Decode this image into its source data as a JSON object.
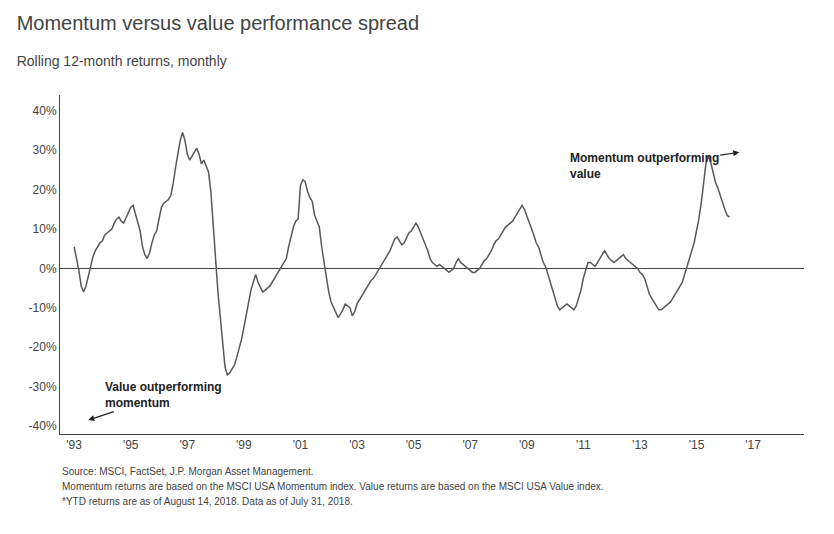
{
  "chart_data": {
    "type": "line",
    "title": "Momentum versus value performance spread",
    "subtitle": "Rolling 12-month returns, monthly",
    "annotations": [
      "Momentum outperforming\nvalue",
      "Value outperforming\nmomentum"
    ],
    "source": [
      "Source: MSCI, FactSet, J.P. Morgan Asset Management.",
      "Momentum returns are based on the MSCI USA Momentum index. Value returns are based on the MSCI USA Value index.",
      "*YTD returns are as of August 14, 2018. Data as of July 31, 2018."
    ],
    "color": "#595959",
    "grid": false,
    "xlim": [
      1992.5,
      2018.8
    ],
    "xticks": [
      {
        "value": 1993,
        "label": "'93"
      },
      {
        "value": 1995,
        "label": "'95"
      },
      {
        "value": 1997,
        "label": "'97"
      },
      {
        "value": 1999,
        "label": "'99"
      },
      {
        "value": 2001,
        "label": "'01"
      },
      {
        "value": 2003,
        "label": "'03"
      },
      {
        "value": 2005,
        "label": "'05"
      },
      {
        "value": 2007,
        "label": "'07"
      },
      {
        "value": 2009,
        "label": "'09"
      },
      {
        "value": 2011,
        "label": "'11"
      },
      {
        "value": 2013,
        "label": "'13"
      },
      {
        "value": 2015,
        "label": "'15"
      },
      {
        "value": 2017,
        "label": "'17"
      }
    ],
    "ylim": [
      -0.42,
      0.44
    ],
    "yticks": [
      {
        "value": -0.4,
        "label": "-40%"
      },
      {
        "value": -0.3,
        "label": "-30%"
      },
      {
        "value": -0.2,
        "label": "-20%"
      },
      {
        "value": -0.1,
        "label": "-10%"
      },
      {
        "value": 0.0,
        "label": "0%"
      },
      {
        "value": 0.1,
        "label": "10%"
      },
      {
        "value": 0.2,
        "label": "20%"
      },
      {
        "value": 0.3,
        "label": "30%"
      },
      {
        "value": 0.4,
        "label": "40%"
      }
    ],
    "x": [
      1993,
      1993.08333,
      1993.16666,
      1993.24999,
      1993.33332,
      1993.41665,
      1993.49998,
      1993.58331,
      1993.66664,
      1993.74997,
      1993.8333,
      1993.91663,
      1993.99996,
      1994.08329,
      1994.16662,
      1994.24995,
      1994.33328,
      1994.41661,
      1994.49994,
      1994.58327,
      1994.6666,
      1994.74993,
      1994.83326,
      1994.91659,
      1994.99992,
      1995.08325,
      1995.16658,
      1995.24991,
      1995.33324,
      1995.41657,
      1995.4999,
      1995.58323,
      1995.66656,
      1995.74989,
      1995.83322,
      1995.91655,
      1995.99988,
      1996.08321,
      1996.16654,
      1996.24987,
      1996.3332,
      1996.41653,
      1996.49986,
      1996.58319,
      1996.66652,
      1996.74985,
      1996.83318,
      1996.91651,
      1996.99984,
      1997.08317,
      1997.1665,
      1997.24983,
      1997.33316,
      1997.41649,
      1997.49982,
      1997.58315,
      1997.66648,
      1997.74981,
      1997.83314,
      1997.91647,
      1997.9998,
      1998.08313,
      1998.16646,
      1998.24979,
      1998.33312,
      1998.41645,
      1998.49978,
      1998.58311,
      1998.66644,
      1998.74977,
      1998.8331,
      1998.91643,
      1998.99976,
      1999.08309,
      1999.16642,
      1999.24975,
      1999.33308,
      1999.41641,
      1999.49974,
      1999.58307,
      1999.6664,
      1999.74973,
      1999.83306,
      1999.91639,
      1999.99972,
      2000.08305,
      2000.16638,
      2000.24971,
      2000.33304,
      2000.41637,
      2000.4997,
      2000.58303,
      2000.66636,
      2000.74969,
      2000.83302,
      2000.91635,
      2000.99968,
      2001.08301,
      2001.16634,
      2001.24967,
      2001.333,
      2001.41633,
      2001.49966,
      2001.58299,
      2001.66632,
      2001.74965,
      2001.83298,
      2001.91631,
      2001.99964,
      2002.08297,
      2002.1663,
      2002.24963,
      2002.33296,
      2002.41629,
      2002.49962,
      2002.58295,
      2002.66628,
      2002.74961,
      2002.83294,
      2002.91627,
      2002.9996,
      2003.08293,
      2003.16626,
      2003.24959,
      2003.33292,
      2003.41625,
      2003.49958,
      2003.58291,
      2003.66624,
      2003.74957,
      2003.8329,
      2003.91623,
      2003.99956,
      2004.08289,
      2004.16622,
      2004.24955,
      2004.33288,
      2004.41621,
      2004.49954,
      2004.58287,
      2004.6662,
      2004.74953,
      2004.83286,
      2004.91619,
      2004.99952,
      2005.08285,
      2005.16618,
      2005.24951,
      2005.33284,
      2005.41617,
      2005.4995,
      2005.58283,
      2005.66616,
      2005.74949,
      2005.83282,
      2005.91615,
      2005.99948,
      2006.08281,
      2006.16614,
      2006.24947,
      2006.3328,
      2006.41613,
      2006.49946,
      2006.58279,
      2006.66612,
      2006.74945,
      2006.83278,
      2006.91611,
      2006.99944,
      2007.08277,
      2007.1661,
      2007.24943,
      2007.33276,
      2007.41609,
      2007.49942,
      2007.58275,
      2007.66608,
      2007.74941,
      2007.83274,
      2007.91607,
      2007.9994,
      2008.08273,
      2008.16606,
      2008.24939,
      2008.33272,
      2008.41605,
      2008.49938,
      2008.58271,
      2008.66604,
      2008.74937,
      2008.8327,
      2008.91603,
      2008.99936,
      2009.08269,
      2009.16602,
      2009.24935,
      2009.33268,
      2009.41601,
      2009.49934,
      2009.58267,
      2009.666,
      2009.74933,
      2009.83266,
      2009.91599,
      2009.99932,
      2010.08265,
      2010.16598,
      2010.24931,
      2010.33264,
      2010.41597,
      2010.4993,
      2010.58263,
      2010.66596,
      2010.74929,
      2010.83262,
      2010.91595,
      2010.99928,
      2011.08261,
      2011.16594,
      2011.24927,
      2011.3326,
      2011.41593,
      2011.49926,
      2011.58259,
      2011.66592,
      2011.74925,
      2011.83258,
      2011.91591,
      2011.99924,
      2012.08257,
      2012.1659,
      2012.24923,
      2012.33256,
      2012.41589,
      2012.49922,
      2012.58255,
      2012.66588,
      2012.74921,
      2012.83254,
      2012.91587,
      2012.9992,
      2013.08253,
      2013.16586,
      2013.24919,
      2013.33252,
      2013.41585,
      2013.49918,
      2013.58251,
      2013.66584,
      2013.74917,
      2013.8325,
      2013.91583,
      2013.99916,
      2014.08249,
      2014.16582,
      2014.24915,
      2014.33248,
      2014.41581,
      2014.49914,
      2014.58247,
      2014.6658,
      2014.74913,
      2014.83246,
      2014.91579,
      2014.99912,
      2015.08245,
      2015.16578,
      2015.24911,
      2015.33244,
      2015.41577,
      2015.4991,
      2015.58243,
      2015.66576,
      2015.74909,
      2015.83242,
      2015.91575,
      2015.99908,
      2016.08241,
      2016.16574
    ],
    "values": [
      0.055,
      0.025,
      -0.005,
      -0.045,
      -0.06,
      -0.045,
      -0.02,
      0.01,
      0.03,
      0.045,
      0.055,
      0.065,
      0.07,
      0.085,
      0.09,
      0.095,
      0.1,
      0.115,
      0.125,
      0.13,
      0.12,
      0.115,
      0.13,
      0.145,
      0.155,
      0.16,
      0.14,
      0.115,
      0.095,
      0.055,
      0.035,
      0.025,
      0.04,
      0.065,
      0.085,
      0.095,
      0.125,
      0.155,
      0.165,
      0.17,
      0.175,
      0.185,
      0.215,
      0.255,
      0.29,
      0.325,
      0.345,
      0.325,
      0.29,
      0.275,
      0.285,
      0.295,
      0.305,
      0.29,
      0.265,
      0.275,
      0.26,
      0.245,
      0.195,
      0.095,
      0.025,
      -0.06,
      -0.12,
      -0.19,
      -0.25,
      -0.27,
      -0.265,
      -0.255,
      -0.245,
      -0.225,
      -0.205,
      -0.18,
      -0.15,
      -0.115,
      -0.085,
      -0.055,
      -0.035,
      -0.015,
      -0.035,
      -0.05,
      -0.06,
      -0.055,
      -0.05,
      -0.045,
      -0.035,
      -0.025,
      -0.015,
      -0.005,
      0.005,
      0.015,
      0.025,
      0.055,
      0.08,
      0.105,
      0.12,
      0.125,
      0.21,
      0.225,
      0.22,
      0.195,
      0.18,
      0.17,
      0.135,
      0.12,
      0.105,
      0.055,
      0.015,
      -0.025,
      -0.06,
      -0.085,
      -0.1,
      -0.115,
      -0.125,
      -0.115,
      -0.105,
      -0.09,
      -0.095,
      -0.1,
      -0.12,
      -0.11,
      -0.09,
      -0.08,
      -0.07,
      -0.06,
      -0.05,
      -0.04,
      -0.03,
      -0.025,
      -0.015,
      -0.005,
      0.005,
      0.015,
      0.025,
      0.035,
      0.045,
      0.06,
      0.075,
      0.08,
      0.07,
      0.06,
      0.065,
      0.08,
      0.09,
      0.095,
      0.105,
      0.115,
      0.105,
      0.09,
      0.075,
      0.065,
      0.045,
      0.025,
      0.015,
      0.01,
      0.005,
      0.01,
      0.005,
      0.0,
      -0.005,
      -0.01,
      -0.005,
      0.0,
      0.015,
      0.025,
      0.015,
      0.01,
      0.005,
      0.0,
      -0.005,
      -0.01,
      -0.01,
      -0.005,
      0.0,
      0.01,
      0.02,
      0.025,
      0.035,
      0.045,
      0.06,
      0.07,
      0.075,
      0.085,
      0.095,
      0.105,
      0.11,
      0.115,
      0.12,
      0.13,
      0.14,
      0.15,
      0.16,
      0.15,
      0.135,
      0.12,
      0.105,
      0.085,
      0.065,
      0.055,
      0.035,
      0.015,
      0.005,
      -0.015,
      -0.035,
      -0.055,
      -0.075,
      -0.095,
      -0.105,
      -0.1,
      -0.095,
      -0.09,
      -0.095,
      -0.1,
      -0.105,
      -0.095,
      -0.075,
      -0.055,
      -0.025,
      -0.005,
      0.015,
      0.015,
      0.01,
      0.005,
      0.015,
      0.025,
      0.035,
      0.045,
      0.035,
      0.025,
      0.02,
      0.015,
      0.02,
      0.025,
      0.03,
      0.035,
      0.025,
      0.02,
      0.015,
      0.01,
      0.005,
      0.0,
      -0.01,
      -0.015,
      -0.025,
      -0.045,
      -0.065,
      -0.075,
      -0.085,
      -0.095,
      -0.105,
      -0.105,
      -0.1,
      -0.095,
      -0.09,
      -0.085,
      -0.075,
      -0.065,
      -0.055,
      -0.045,
      -0.035,
      -0.015,
      0.005,
      0.025,
      0.045,
      0.065,
      0.095,
      0.125,
      0.165,
      0.215,
      0.265,
      0.285,
      0.27,
      0.245,
      0.22,
      0.205,
      0.185,
      0.165,
      0.15,
      0.135,
      0.13
    ]
  }
}
